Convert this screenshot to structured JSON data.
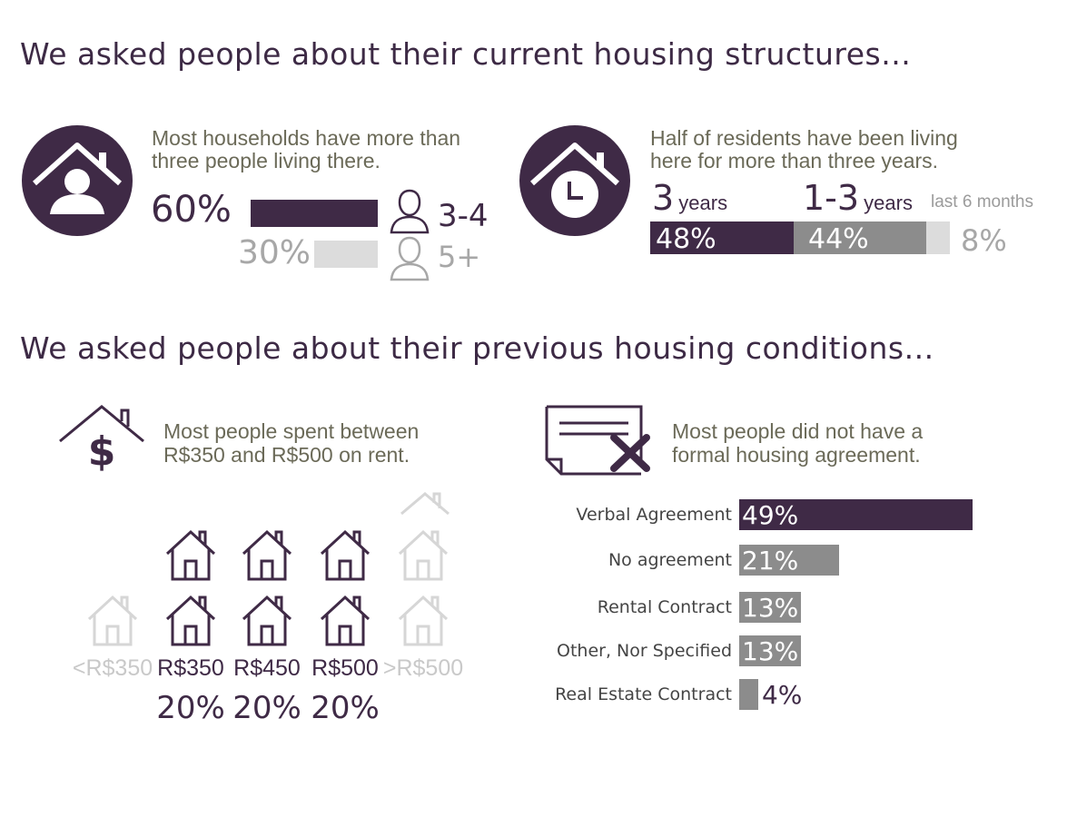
{
  "section1": {
    "title": "We asked people about their current housing structures..."
  },
  "household": {
    "text": [
      "Most households have more than",
      "three people living there."
    ],
    "rows": [
      {
        "pct": "60%",
        "value": 60,
        "label": "3-4"
      },
      {
        "pct": "30%",
        "value": 30,
        "label": "5+"
      }
    ]
  },
  "residence": {
    "text": [
      "Half of residents have been living",
      "here for more than three years."
    ],
    "cat1_num": "3",
    "cat1_unit": "years",
    "cat2_num": "1-3",
    "cat2_unit": "years",
    "cat3": "last 6 months",
    "pct1": "48%",
    "pct2": "44%",
    "pct3": "8%"
  },
  "section2": {
    "title": "We asked people about their previous housing conditions..."
  },
  "rent": {
    "text": [
      "Most people spent between",
      "R$350 and R$500 on rent."
    ],
    "icon_symbol": "$",
    "columns": [
      {
        "label": "<R$350",
        "pct": "",
        "highlighted": false
      },
      {
        "label": "R$350",
        "pct": "20%",
        "highlighted": true
      },
      {
        "label": "R$450",
        "pct": "20%",
        "highlighted": true
      },
      {
        "label": "R$500",
        "pct": "20%",
        "highlighted": true
      },
      {
        "label": ">R$500",
        "pct": "",
        "highlighted": false
      }
    ]
  },
  "agreement": {
    "text": [
      "Most people did not have a",
      "formal housing agreement."
    ]
  },
  "chart_data": [
    {
      "type": "bar",
      "categories": [
        "3-4",
        "5+"
      ],
      "values": [
        60,
        30
      ],
      "labels": [
        "60%",
        "30%"
      ]
    },
    {
      "type": "bar",
      "categories": [
        "3 years",
        "1-3 years",
        "last 6 months"
      ],
      "values": [
        48,
        44,
        8
      ],
      "labels": [
        "48%",
        "44%",
        "8%"
      ]
    },
    {
      "type": "bar",
      "categories": [
        "Verbal Agreement",
        "No agreement",
        "Rental Contract",
        "Other, Nor Specified",
        "Real Estate Contract"
      ],
      "values": [
        49,
        21,
        13,
        13,
        4
      ],
      "labels": [
        "49%",
        "21%",
        "13%",
        "13%",
        "4%"
      ],
      "colors": [
        "#3f2a46",
        "#8c8c8c",
        "#8c8c8c",
        "#8c8c8c",
        "#8c8c8c"
      ]
    }
  ],
  "colors": {
    "purple": "#3f2a46",
    "grey": "#8c8c8c",
    "light_grey": "#dcdcdc",
    "faint": "#cfcfcf"
  }
}
